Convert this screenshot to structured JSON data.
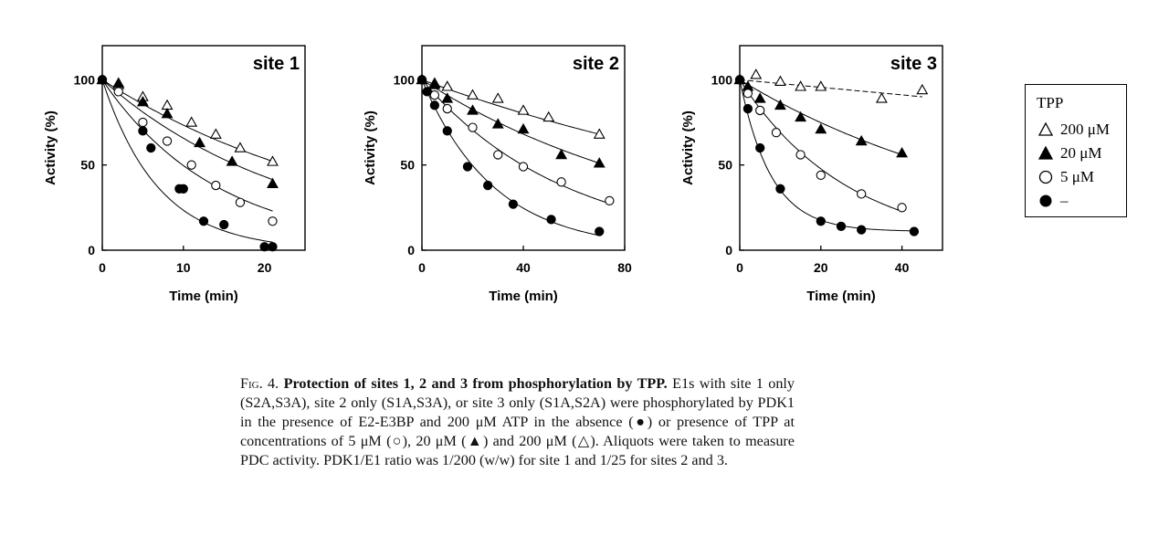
{
  "chart_data": [
    {
      "type": "scatter",
      "title": "site 1",
      "xlabel": "Time (min)",
      "ylabel": "Activity (%)",
      "xlim": [
        0,
        25
      ],
      "ylim": [
        0,
        120
      ],
      "xticks": [
        0,
        10,
        20
      ],
      "yticks": [
        0,
        50,
        100
      ],
      "series": [
        {
          "name": "200 μM",
          "marker": "triangle-open",
          "x": [
            0,
            2,
            5,
            8,
            11,
            14,
            17,
            21
          ],
          "y": [
            100,
            97,
            90,
            85,
            75,
            68,
            60,
            52
          ],
          "fit_x": [
            0,
            21
          ],
          "fit_k": 0.031
        },
        {
          "name": "20 μM",
          "marker": "triangle-filled",
          "x": [
            0,
            2,
            5,
            8,
            12,
            16,
            21
          ],
          "y": [
            100,
            98,
            87,
            80,
            63,
            52,
            39
          ],
          "fit_x": [
            0,
            21
          ],
          "fit_k": 0.042
        },
        {
          "name": "5 μM",
          "marker": "circle-open",
          "x": [
            0,
            2,
            5,
            8,
            11,
            14,
            17,
            21
          ],
          "y": [
            100,
            93,
            75,
            64,
            50,
            38,
            28,
            17
          ],
          "fit_x": [
            0,
            21
          ],
          "fit_k": 0.07
        },
        {
          "name": "–",
          "marker": "circle-filled",
          "x": [
            0,
            5,
            6,
            9.5,
            10,
            12.5,
            15,
            20,
            21
          ],
          "y": [
            100,
            70,
            60,
            36,
            36,
            17,
            15,
            2,
            2
          ],
          "fit_x": [
            0,
            21
          ],
          "fit_k": 0.145
        }
      ]
    },
    {
      "type": "scatter",
      "title": "site 2",
      "xlabel": "Time (min)",
      "ylabel": "Activity (%)",
      "xlim": [
        0,
        80
      ],
      "ylim": [
        0,
        120
      ],
      "xticks": [
        0,
        40,
        80
      ],
      "yticks": [
        0,
        50,
        100
      ],
      "series": [
        {
          "name": "200 μM",
          "marker": "triangle-open",
          "x": [
            0,
            5,
            10,
            20,
            30,
            40,
            50,
            70
          ],
          "y": [
            100,
            98,
            96,
            91,
            89,
            82,
            78,
            68
          ],
          "fit_x": [
            0,
            70
          ],
          "fit_k": 0.0055
        },
        {
          "name": "20 μM",
          "marker": "triangle-filled",
          "x": [
            0,
            5,
            10,
            20,
            30,
            40,
            55,
            70
          ],
          "y": [
            100,
            97,
            89,
            82,
            74,
            71,
            56,
            51
          ],
          "fit_x": [
            0,
            70
          ],
          "fit_k": 0.0096
        },
        {
          "name": "5 μM",
          "marker": "circle-open",
          "x": [
            0,
            5,
            10,
            20,
            30,
            40,
            55,
            74
          ],
          "y": [
            100,
            91,
            83,
            72,
            56,
            49,
            40,
            29
          ],
          "fit_x": [
            0,
            74
          ],
          "fit_k": 0.0175
        },
        {
          "name": "–",
          "marker": "circle-filled",
          "x": [
            0,
            2,
            5,
            10,
            18,
            26,
            36,
            51,
            70
          ],
          "y": [
            100,
            93,
            85,
            70,
            49,
            38,
            27,
            18,
            11
          ],
          "fit_x": [
            0,
            70
          ],
          "fit_k": 0.035
        }
      ]
    },
    {
      "type": "scatter",
      "title": "site 3",
      "xlabel": "Time (min)",
      "ylabel": "Activity (%)",
      "xlim": [
        0,
        50
      ],
      "ylim": [
        0,
        120
      ],
      "xticks": [
        0,
        20,
        40
      ],
      "yticks": [
        0,
        50,
        100
      ],
      "series": [
        {
          "name": "200 μM",
          "marker": "triangle-open",
          "x": [
            0,
            4,
            10,
            15,
            20,
            35,
            45
          ],
          "y": [
            100,
            103,
            99,
            96,
            96,
            89,
            94
          ],
          "fit_x": [
            0,
            45
          ],
          "fit_linear": [
            100,
            90
          ]
        },
        {
          "name": "20 μM",
          "marker": "triangle-filled",
          "x": [
            0,
            2,
            5,
            10,
            15,
            20,
            30,
            40
          ],
          "y": [
            100,
            96,
            89,
            85,
            78,
            71,
            64,
            57
          ],
          "fit_x": [
            0,
            40
          ],
          "fit_k": 0.0145
        },
        {
          "name": "5 μM",
          "marker": "circle-open",
          "x": [
            0,
            2,
            5,
            9,
            15,
            20,
            30,
            40
          ],
          "y": [
            100,
            92,
            82,
            69,
            56,
            44,
            33,
            25
          ],
          "fit_x": [
            0,
            40
          ],
          "fit_k": 0.037
        },
        {
          "name": "–",
          "marker": "circle-filled",
          "x": [
            0,
            2,
            5,
            10,
            20,
            25,
            30,
            43
          ],
          "y": [
            100,
            83,
            60,
            36,
            17,
            14,
            12,
            11
          ],
          "fit_x": [
            0,
            43
          ],
          "fit_exp_plateau": {
            "plateau": 11,
            "k": 0.13
          }
        }
      ]
    }
  ],
  "legend": {
    "title": "TPP",
    "entries": [
      {
        "marker": "triangle-open",
        "label": "200 μM"
      },
      {
        "marker": "triangle-filled",
        "label": "20 μM"
      },
      {
        "marker": "circle-open",
        "label": "5 μM"
      },
      {
        "marker": "circle-filled",
        "label": "–"
      }
    ]
  },
  "caption": {
    "fig_label": "Fig. 4.",
    "bold_text": "Protection of sites 1, 2 and 3 from phosphorylation by TPP.",
    "part1": "E1s with site 1 only (S2A,S3A), site 2 only (S1A,S3A), or site 3 only (S1A,S2A) were phosphorylated by PDK1 in the presence of E2-E3BP and 200 μM ATP in the absence (●) or presence of TPP at concentrations of 5 μM (○), 20 μM (▲) and 200 μM (△). Aliquots were taken to measure PDC activity. PDK1/E1 ratio was 1/200 (w/w) for site 1 and 1/25 for sites 2 and 3."
  }
}
